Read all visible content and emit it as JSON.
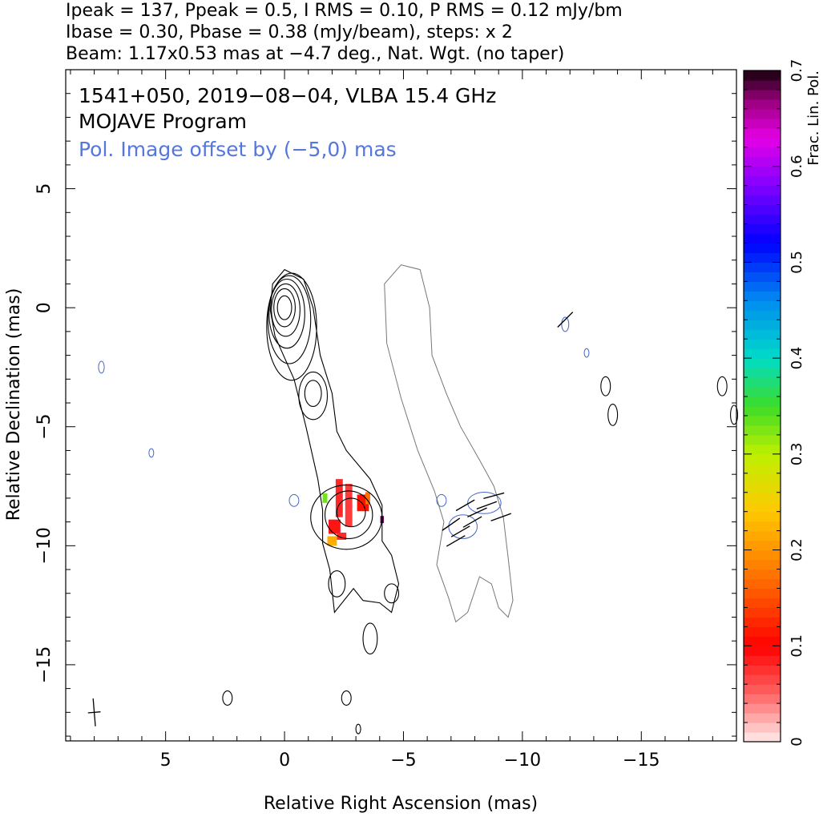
{
  "header": {
    "line1": "Ipeak = 137, Ppeak = 0.5, I RMS = 0.10, P RMS = 0.12 mJy/bm",
    "line2": "Ibase = 0.30, Pbase = 0.38 (mJy/beam), steps: x 2",
    "line3": "Beam: 1.17x0.53 mas at −4.7 deg., Nat. Wgt. (no taper)"
  },
  "chart_data": {
    "type": "contour",
    "title_lines": [
      "1541+050, 2019−08−04, VLBA 15.4 GHz",
      "MOJAVE Program"
    ],
    "offset_note": "Pol. Image offset by (−5,0) mas",
    "xlabel": "Relative Right Ascension (mas)",
    "ylabel": "Relative Declination (mas)",
    "xlim": [
      9.2,
      -19
    ],
    "ylim": [
      -18.2,
      10
    ],
    "xticks": [
      5,
      0,
      -5,
      -10,
      -15
    ],
    "xtick_labels": [
      "5",
      "0",
      "−5",
      "−10",
      "−15"
    ],
    "yticks": [
      5,
      0,
      -5,
      -10,
      -15
    ],
    "ytick_labels": [
      "5",
      "0",
      "−5",
      "−10",
      "−15"
    ],
    "colorbar": {
      "label": "Frac. Lin. Pol.",
      "range": [
        0,
        0.7
      ],
      "ticks": [
        0,
        0.1,
        0.2,
        0.3,
        0.4,
        0.5,
        0.6,
        0.7
      ],
      "tick_labels": [
        "0",
        "0.1",
        "0.2",
        "0.3",
        "0.4",
        "0.5",
        "0.6",
        "0.7"
      ]
    },
    "beam": {
      "major_mas": 1.17,
      "minor_mas": 0.53,
      "pa_deg": -4.7,
      "center": [
        8.0,
        -17.0
      ]
    },
    "total_intensity_contours": [
      {
        "cx": 0.0,
        "cy": 0.0,
        "rx": 0.3,
        "ry": 0.5
      },
      {
        "cx": 0.0,
        "cy": 0.0,
        "rx": 0.45,
        "ry": 0.8
      },
      {
        "cx": -0.05,
        "cy": -0.1,
        "rx": 0.6,
        "ry": 1.1
      },
      {
        "cx": -0.1,
        "cy": -0.25,
        "rx": 0.75,
        "ry": 1.45
      },
      {
        "cx": -0.2,
        "cy": -0.5,
        "rx": 0.9,
        "ry": 1.85
      },
      {
        "cx": -0.3,
        "cy": -0.8,
        "rx": 1.05,
        "ry": 2.25
      },
      {
        "cx": -1.2,
        "cy": -3.6,
        "rx": 0.35,
        "ry": 0.55
      },
      {
        "cx": -1.2,
        "cy": -3.7,
        "rx": 0.6,
        "ry": 1.0
      },
      {
        "cx": -2.8,
        "cy": -8.6,
        "rx": 0.6,
        "ry": 0.6
      },
      {
        "cx": -2.7,
        "cy": -8.7,
        "rx": 1.0,
        "ry": 1.0
      },
      {
        "cx": -2.6,
        "cy": -8.8,
        "rx": 1.5,
        "ry": 1.35
      },
      {
        "cx": -2.2,
        "cy": -11.6,
        "rx": 0.35,
        "ry": 0.55
      },
      {
        "cx": -4.5,
        "cy": -12.0,
        "rx": 0.3,
        "ry": 0.4
      },
      {
        "cx": -3.6,
        "cy": -13.9,
        "rx": 0.3,
        "ry": 0.65
      },
      {
        "cx": 2.4,
        "cy": -16.4,
        "rx": 0.2,
        "ry": 0.3
      },
      {
        "cx": -2.6,
        "cy": -16.4,
        "rx": 0.2,
        "ry": 0.3
      },
      {
        "cx": -3.1,
        "cy": -17.7,
        "rx": 0.1,
        "ry": 0.2
      },
      {
        "cx": -13.5,
        "cy": -3.3,
        "rx": 0.2,
        "ry": 0.4
      },
      {
        "cx": -13.8,
        "cy": -4.5,
        "rx": 0.2,
        "ry": 0.45
      },
      {
        "cx": -18.4,
        "cy": -3.3,
        "rx": 0.2,
        "ry": 0.4
      },
      {
        "cx": -18.9,
        "cy": -4.5,
        "rx": 0.15,
        "ry": 0.4
      }
    ],
    "total_intensity_envelope": [
      [
        0.6,
        -0.1
      ],
      [
        0.5,
        1.0
      ],
      [
        0.0,
        1.6
      ],
      [
        -0.8,
        1.2
      ],
      [
        -1.2,
        0.0
      ],
      [
        -1.5,
        -2.0
      ],
      [
        -2.0,
        -3.6
      ],
      [
        -2.2,
        -5.2
      ],
      [
        -2.6,
        -6.0
      ],
      [
        -3.6,
        -7.2
      ],
      [
        -4.1,
        -8.3
      ],
      [
        -4.1,
        -9.8
      ],
      [
        -4.5,
        -10.4
      ],
      [
        -4.8,
        -11.6
      ],
      [
        -4.5,
        -12.8
      ],
      [
        -4.0,
        -12.4
      ],
      [
        -3.3,
        -12.3
      ],
      [
        -2.9,
        -11.8
      ],
      [
        -2.1,
        -12.8
      ],
      [
        -1.9,
        -11.0
      ],
      [
        -1.6,
        -9.9
      ],
      [
        -1.6,
        -8.5
      ],
      [
        -1.4,
        -7.2
      ],
      [
        -0.9,
        -5.0
      ],
      [
        -0.4,
        -3.0
      ],
      [
        0.4,
        -1.2
      ]
    ],
    "pol_intensity_envelope": [
      [
        -4.2,
        1.0
      ],
      [
        -4.9,
        1.8
      ],
      [
        -5.7,
        1.6
      ],
      [
        -6.1,
        0.0
      ],
      [
        -6.2,
        -2.0
      ],
      [
        -6.8,
        -3.6
      ],
      [
        -7.4,
        -5.0
      ],
      [
        -8.2,
        -6.4
      ],
      [
        -8.8,
        -7.5
      ],
      [
        -9.2,
        -8.8
      ],
      [
        -9.4,
        -10.5
      ],
      [
        -9.6,
        -12.3
      ],
      [
        -9.4,
        -13.0
      ],
      [
        -9.0,
        -12.6
      ],
      [
        -8.7,
        -11.6
      ],
      [
        -8.2,
        -11.3
      ],
      [
        -7.7,
        -12.8
      ],
      [
        -7.2,
        -13.2
      ],
      [
        -6.9,
        -12.2
      ],
      [
        -6.4,
        -10.8
      ],
      [
        -6.7,
        -9.0
      ],
      [
        -6.3,
        -7.7
      ],
      [
        -5.6,
        -6.0
      ],
      [
        -4.9,
        -3.8
      ],
      [
        -4.3,
        -1.5
      ]
    ],
    "pol_blue_contours": [
      {
        "cx": -7.5,
        "cy": -9.2,
        "rx": 0.6,
        "ry": 0.5
      },
      {
        "cx": -8.4,
        "cy": -8.2,
        "rx": 0.7,
        "ry": 0.45
      },
      {
        "cx": -6.6,
        "cy": -8.1,
        "rx": 0.2,
        "ry": 0.25
      },
      {
        "cx": -0.4,
        "cy": -8.1,
        "rx": 0.2,
        "ry": 0.25
      },
      {
        "cx": 7.7,
        "cy": -2.5,
        "rx": 0.12,
        "ry": 0.25
      },
      {
        "cx": 5.6,
        "cy": -6.1,
        "rx": 0.1,
        "ry": 0.18
      },
      {
        "cx": -12.7,
        "cy": -1.9,
        "rx": 0.1,
        "ry": 0.18
      },
      {
        "cx": -11.8,
        "cy": -0.7,
        "rx": 0.15,
        "ry": 0.3
      }
    ],
    "evpa_sticks": [
      {
        "x": -7.2,
        "y": -9.8,
        "angle_deg": 30
      },
      {
        "x": -7.4,
        "y": -9.4,
        "angle_deg": 30
      },
      {
        "x": -7.0,
        "y": -9.1,
        "angle_deg": 35
      },
      {
        "x": -7.9,
        "y": -9.0,
        "angle_deg": 30
      },
      {
        "x": -8.1,
        "y": -8.6,
        "angle_deg": 25
      },
      {
        "x": -8.5,
        "y": -8.3,
        "angle_deg": 20
      },
      {
        "x": -8.8,
        "y": -7.9,
        "angle_deg": 15
      },
      {
        "x": -7.6,
        "y": -8.3,
        "angle_deg": 30
      },
      {
        "x": -9.1,
        "y": -8.8,
        "angle_deg": 20
      },
      {
        "x": -11.8,
        "y": -0.5,
        "angle_deg": 45
      }
    ],
    "frac_pol_pixels": [
      {
        "x": -2.3,
        "y": -8.0,
        "w": 0.3,
        "h": 1.6,
        "v": 0.08
      },
      {
        "x": -2.7,
        "y": -8.3,
        "w": 0.3,
        "h": 1.8,
        "v": 0.07
      },
      {
        "x": -3.3,
        "y": -8.2,
        "w": 0.5,
        "h": 0.7,
        "v": 0.11
      },
      {
        "x": -2.1,
        "y": -9.2,
        "w": 0.5,
        "h": 0.6,
        "v": 0.09
      },
      {
        "x": -2.4,
        "y": -9.6,
        "w": 0.4,
        "h": 0.3,
        "v": 0.08
      },
      {
        "x": -2.0,
        "y": -9.8,
        "w": 0.4,
        "h": 0.4,
        "v": 0.22
      },
      {
        "x": -1.7,
        "y": -8.0,
        "w": 0.2,
        "h": 0.4,
        "v": 0.33
      },
      {
        "x": -3.5,
        "y": -8.0,
        "w": 0.2,
        "h": 0.5,
        "v": 0.17
      },
      {
        "x": -4.1,
        "y": -8.9,
        "w": 0.15,
        "h": 0.3,
        "v": 0.68
      }
    ]
  }
}
